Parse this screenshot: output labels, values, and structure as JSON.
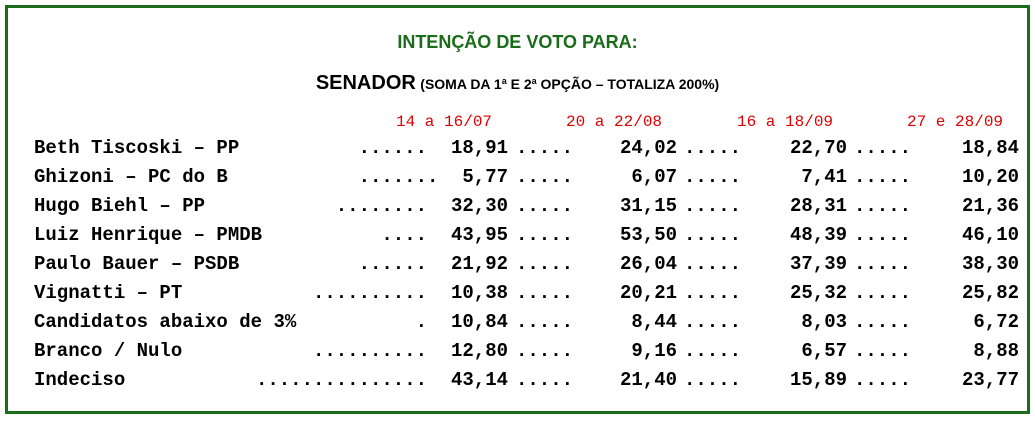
{
  "title": "INTENÇÃO DE VOTO PARA:",
  "subtitle": {
    "main": "SENADOR",
    "note_prefix": "(SOMA DA 1",
    "sup1": "a",
    "note_mid": " E 2",
    "sup2": "a",
    "note_suffix": " OPÇÃO – TOTALIZA 200%)"
  },
  "colors": {
    "frame": "#1a6b1a",
    "title": "#1a6b1a",
    "period_headers": "#e00000"
  },
  "periods": [
    "14 a 16/07",
    "20 a 22/08",
    "16 a 18/09",
    "27 e 28/09"
  ],
  "rows": [
    {
      "name": "Beth Tiscoski – PP",
      "leader": "......",
      "values": [
        "18,91",
        "24,02",
        "22,70",
        "18,84"
      ]
    },
    {
      "name": "Ghizoni – PC do B",
      "leader": ".......",
      "values": [
        "5,77",
        "6,07",
        "7,41",
        "10,20"
      ]
    },
    {
      "name": "Hugo Biehl – PP",
      "leader": "........",
      "values": [
        "32,30",
        "31,15",
        "28,31",
        "21,36"
      ]
    },
    {
      "name": "Luiz Henrique – PMDB",
      "leader": "....",
      "values": [
        "43,95",
        "53,50",
        "48,39",
        "46,10"
      ]
    },
    {
      "name": "Paulo Bauer – PSDB",
      "leader": "......",
      "values": [
        "21,92",
        "26,04",
        "37,39",
        "38,30"
      ]
    },
    {
      "name": "Vignatti – PT",
      "leader": "..........",
      "values": [
        "10,38",
        "20,21",
        "25,32",
        "25,82"
      ]
    },
    {
      "name": "Candidatos abaixo de 3%",
      "leader": ".",
      "values": [
        "10,84",
        "8,44",
        "8,03",
        "6,72"
      ]
    },
    {
      "name": "Branco / Nulo",
      "leader": "..........",
      "values": [
        "12,80",
        "9,16",
        "6,57",
        "8,88"
      ]
    },
    {
      "name": "Indeciso",
      "leader": "...............",
      "values": [
        "43,14",
        "21,40",
        "15,89",
        "23,77"
      ]
    }
  ],
  "separator": "....."
}
